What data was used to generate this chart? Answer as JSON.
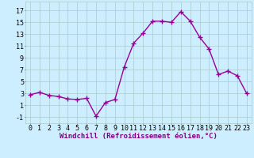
{
  "x": [
    0,
    1,
    2,
    3,
    4,
    5,
    6,
    7,
    8,
    9,
    10,
    11,
    12,
    13,
    14,
    15,
    16,
    17,
    18,
    19,
    20,
    21,
    22,
    23
  ],
  "y": [
    2.8,
    3.2,
    2.7,
    2.5,
    2.1,
    2.0,
    2.2,
    -0.8,
    1.5,
    2.0,
    7.5,
    11.5,
    13.2,
    15.2,
    15.2,
    15.0,
    16.8,
    15.2,
    12.5,
    10.5,
    6.2,
    6.8,
    6.0,
    3.0
  ],
  "xlabel": "Windchill (Refroidissement éolien,°C)",
  "yticks": [
    -1,
    1,
    3,
    5,
    7,
    9,
    11,
    13,
    15,
    17
  ],
  "xticks": [
    0,
    1,
    2,
    3,
    4,
    5,
    6,
    7,
    8,
    9,
    10,
    11,
    12,
    13,
    14,
    15,
    16,
    17,
    18,
    19,
    20,
    21,
    22,
    23
  ],
  "ylim": [
    -2,
    18.5
  ],
  "xlim": [
    -0.5,
    23.5
  ],
  "line_color": "#990099",
  "marker": "+",
  "marker_size": 4,
  "bg_color": "#cceeff",
  "grid_color": "#aacccc",
  "xlabel_fontsize": 6.5,
  "tick_fontsize": 6,
  "linewidth": 1.0
}
